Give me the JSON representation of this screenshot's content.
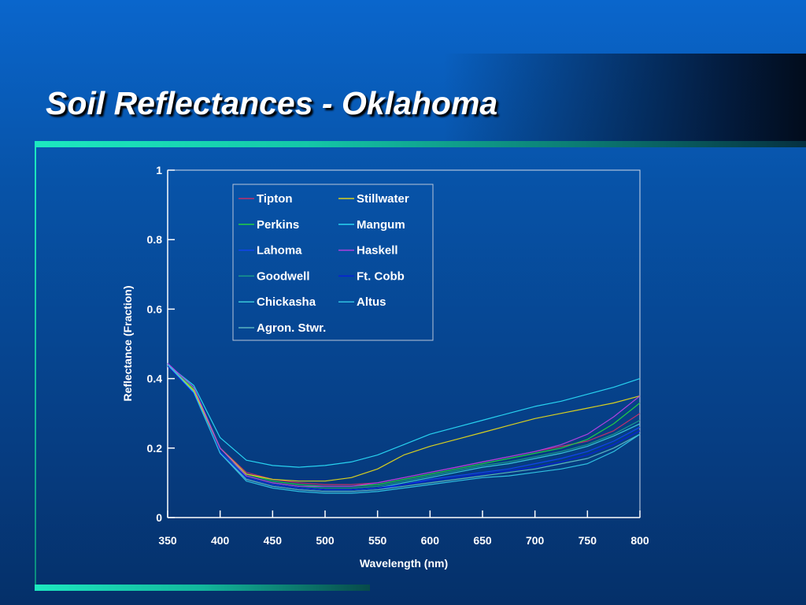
{
  "slide": {
    "title": "Soil Reflectances - Oklahoma"
  },
  "colors": {
    "background": "#0753a8",
    "accent_rule": "#1de9c0",
    "text": "#ffffff"
  },
  "chart_data": {
    "type": "line",
    "title": "",
    "xlabel": "Wavelength (nm)",
    "ylabel": "Reflectance (Fraction)",
    "xlim": [
      350,
      800
    ],
    "ylim": [
      0,
      1
    ],
    "xticks": [
      350,
      400,
      450,
      500,
      550,
      600,
      650,
      700,
      750,
      800
    ],
    "yticks": [
      0,
      0.2,
      0.4,
      0.6,
      0.8,
      1
    ],
    "ytick_labels": [
      "0",
      "0.2",
      "0.4",
      "0.6",
      "0.8",
      "1"
    ],
    "grid": false,
    "legend_position": "top-left inside plot",
    "x": [
      350,
      375,
      400,
      425,
      450,
      475,
      500,
      525,
      550,
      575,
      600,
      625,
      650,
      675,
      700,
      725,
      750,
      775,
      800
    ],
    "series": [
      {
        "name": "Tipton",
        "color": "#c0306a",
        "values": [
          0.44,
          0.37,
          0.2,
          0.13,
          0.11,
          0.1,
          0.095,
          0.095,
          0.1,
          0.115,
          0.13,
          0.145,
          0.16,
          0.175,
          0.19,
          0.205,
          0.22,
          0.25,
          0.3
        ]
      },
      {
        "name": "Perkins",
        "color": "#22cc44",
        "values": [
          0.44,
          0.37,
          0.2,
          0.125,
          0.105,
          0.095,
          0.09,
          0.09,
          0.095,
          0.11,
          0.125,
          0.14,
          0.155,
          0.17,
          0.185,
          0.2,
          0.225,
          0.27,
          0.33
        ]
      },
      {
        "name": "Lahoma",
        "color": "#1144ee",
        "values": [
          0.44,
          0.36,
          0.19,
          0.11,
          0.09,
          0.08,
          0.075,
          0.075,
          0.08,
          0.095,
          0.11,
          0.12,
          0.13,
          0.14,
          0.155,
          0.17,
          0.19,
          0.22,
          0.26
        ]
      },
      {
        "name": "Goodwell",
        "color": "#1a9a8a",
        "values": [
          0.44,
          0.36,
          0.19,
          0.12,
          0.1,
          0.09,
          0.085,
          0.085,
          0.09,
          0.105,
          0.12,
          0.135,
          0.15,
          0.16,
          0.175,
          0.19,
          0.21,
          0.24,
          0.28
        ]
      },
      {
        "name": "Chickasha",
        "color": "#3ac6d8",
        "values": [
          0.44,
          0.36,
          0.19,
          0.115,
          0.095,
          0.085,
          0.08,
          0.08,
          0.085,
          0.1,
          0.115,
          0.13,
          0.145,
          0.155,
          0.17,
          0.185,
          0.205,
          0.235,
          0.27
        ]
      },
      {
        "name": "Agron. Stwr.",
        "color": "#5ab4c0",
        "values": [
          0.44,
          0.36,
          0.185,
          0.11,
          0.09,
          0.08,
          0.075,
          0.075,
          0.08,
          0.09,
          0.1,
          0.11,
          0.12,
          0.13,
          0.14,
          0.155,
          0.17,
          0.2,
          0.24
        ]
      },
      {
        "name": "Stillwater",
        "color": "#d8d020",
        "values": [
          0.44,
          0.37,
          0.2,
          0.125,
          0.11,
          0.105,
          0.105,
          0.115,
          0.14,
          0.18,
          0.205,
          0.225,
          0.245,
          0.265,
          0.285,
          0.3,
          0.315,
          0.33,
          0.35
        ]
      },
      {
        "name": "Mangum",
        "color": "#28d2f0",
        "values": [
          0.44,
          0.38,
          0.23,
          0.165,
          0.15,
          0.145,
          0.15,
          0.16,
          0.18,
          0.21,
          0.24,
          0.26,
          0.28,
          0.3,
          0.32,
          0.335,
          0.355,
          0.375,
          0.4
        ]
      },
      {
        "name": "Haskell",
        "color": "#b040e0",
        "values": [
          0.44,
          0.37,
          0.2,
          0.12,
          0.1,
          0.09,
          0.09,
          0.09,
          0.1,
          0.115,
          0.13,
          0.145,
          0.16,
          0.175,
          0.19,
          0.21,
          0.24,
          0.29,
          0.35
        ]
      },
      {
        "name": "Ft. Cobb",
        "color": "#0820d8",
        "values": [
          0.44,
          0.36,
          0.19,
          0.115,
          0.095,
          0.085,
          0.08,
          0.08,
          0.085,
          0.095,
          0.105,
          0.115,
          0.125,
          0.135,
          0.145,
          0.16,
          0.18,
          0.21,
          0.25
        ]
      },
      {
        "name": "Altus",
        "color": "#30c0e0",
        "values": [
          0.44,
          0.36,
          0.185,
          0.105,
          0.085,
          0.075,
          0.07,
          0.07,
          0.075,
          0.085,
          0.095,
          0.105,
          0.115,
          0.12,
          0.13,
          0.14,
          0.155,
          0.19,
          0.24
        ]
      }
    ]
  }
}
